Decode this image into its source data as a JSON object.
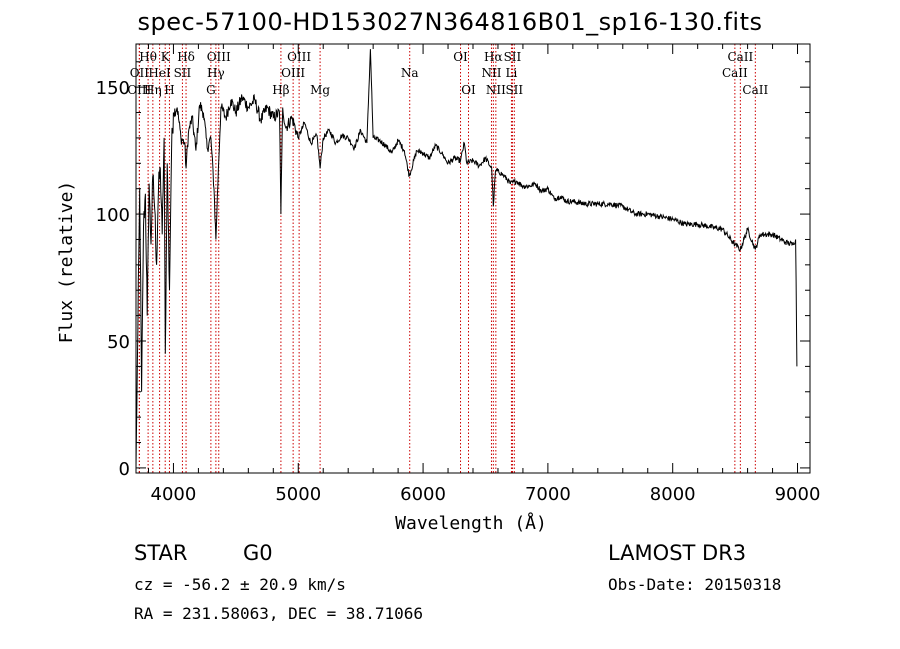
{
  "chart_data": {
    "type": "line",
    "title": "spec-57100-HD153027N364816B01_sp16-130.fits",
    "xlabel": "Wavelength (Å)",
    "ylabel": "Flux (relative)",
    "xlim": [
      3700,
      9100
    ],
    "ylim": [
      -2,
      167
    ],
    "xticks": [
      4000,
      5000,
      6000,
      7000,
      8000,
      9000
    ],
    "yticks": [
      0,
      50,
      100,
      150
    ],
    "line_color": "#000000",
    "marker_color": "#cc0000",
    "series": [
      {
        "name": "flux",
        "x": [
          3700,
          3715,
          3730,
          3745,
          3760,
          3775,
          3790,
          3805,
          3820,
          3835,
          3850,
          3865,
          3880,
          3895,
          3910,
          3925,
          3935,
          3950,
          3968,
          3985,
          4000,
          4030,
          4060,
          4090,
          4101,
          4120,
          4150,
          4180,
          4210,
          4240,
          4270,
          4300,
          4325,
          4340,
          4360,
          4380,
          4420,
          4460,
          4500,
          4550,
          4600,
          4650,
          4700,
          4750,
          4800,
          4850,
          4861,
          4875,
          4900,
          4950,
          5000,
          5050,
          5100,
          5150,
          5175,
          5200,
          5250,
          5300,
          5350,
          5400,
          5450,
          5500,
          5550,
          5578,
          5600,
          5650,
          5700,
          5750,
          5800,
          5850,
          5890,
          5950,
          6000,
          6050,
          6100,
          6150,
          6200,
          6250,
          6300,
          6330,
          6350,
          6400,
          6450,
          6500,
          6550,
          6563,
          6580,
          6600,
          6650,
          6700,
          6750,
          6800,
          6850,
          6900,
          6950,
          7000,
          7050,
          7100,
          7150,
          7200,
          7300,
          7400,
          7500,
          7600,
          7700,
          7800,
          7900,
          8000,
          8100,
          8200,
          8300,
          8400,
          8498,
          8542,
          8600,
          8662,
          8700,
          8800,
          8900,
          8960,
          8985,
          8995
        ],
        "y": [
          0,
          55,
          110,
          30,
          95,
          108,
          60,
          112,
          88,
          115,
          102,
          80,
          110,
          118,
          92,
          130,
          45,
          120,
          70,
          126,
          140,
          142,
          130,
          128,
          118,
          132,
          138,
          125,
          143,
          140,
          126,
          130,
          110,
          90,
          118,
          142,
          138,
          145,
          140,
          146,
          142,
          145,
          137,
          142,
          138,
          140,
          100,
          142,
          134,
          138,
          130,
          136,
          128,
          131,
          118,
          130,
          133,
          128,
          131,
          130,
          126,
          133,
          128,
          165,
          130,
          129,
          127,
          124,
          129,
          125,
          115,
          125,
          124,
          122,
          127,
          124,
          120,
          122,
          121,
          128,
          120,
          121,
          119,
          122,
          118,
          103,
          117,
          117,
          115,
          112,
          113,
          111,
          111,
          112,
          109,
          110,
          106,
          107,
          105,
          105,
          104,
          104,
          104,
          103,
          100,
          100,
          99,
          98,
          96,
          96,
          95,
          94,
          88,
          86,
          94,
          86,
          92,
          92,
          89,
          88,
          90,
          40
        ]
      }
    ],
    "line_markers": [
      {
        "wave": 3797,
        "label": "Hθ",
        "row": 1
      },
      {
        "wave": 3727,
        "label": "OII",
        "row": 2
      },
      {
        "wave": 3727,
        "label": "OIII",
        "row": 3
      },
      {
        "wave": 3835,
        "label": "Hη",
        "row": 3
      },
      {
        "wave": 3889,
        "label": "HeI",
        "row": 2
      },
      {
        "wave": 3934,
        "label": "K",
        "row": 1
      },
      {
        "wave": 3968,
        "label": "H",
        "row": 3
      },
      {
        "wave": 4072,
        "label": "SII",
        "row": 2
      },
      {
        "wave": 4101,
        "label": "Hδ",
        "row": 1
      },
      {
        "wave": 4300,
        "label": "G",
        "row": 3
      },
      {
        "wave": 4340,
        "label": "Hγ",
        "row": 2
      },
      {
        "wave": 4363,
        "label": "OIII",
        "row": 1
      },
      {
        "wave": 4861,
        "label": "Hβ",
        "row": 3
      },
      {
        "wave": 4959,
        "label": "OIII",
        "row": 2
      },
      {
        "wave": 5007,
        "label": "OIII",
        "row": 1
      },
      {
        "wave": 5175,
        "label": "Mg",
        "row": 3
      },
      {
        "wave": 5893,
        "label": "Na",
        "row": 2
      },
      {
        "wave": 6300,
        "label": "OI",
        "row": 1
      },
      {
        "wave": 6364,
        "label": "OI",
        "row": 3
      },
      {
        "wave": 6548,
        "label": "NII",
        "row": 2
      },
      {
        "wave": 6563,
        "label": "Hα",
        "row": 1
      },
      {
        "wave": 6583,
        "label": "NII",
        "row": 3
      },
      {
        "wave": 6708,
        "label": "Li",
        "row": 2
      },
      {
        "wave": 6716,
        "label": "SII",
        "row": 1
      },
      {
        "wave": 6731,
        "label": "SII",
        "row": 3
      },
      {
        "wave": 8498,
        "label": "CaII",
        "row": 2
      },
      {
        "wave": 8542,
        "label": "CaII",
        "row": 1
      },
      {
        "wave": 8662,
        "label": "CaII",
        "row": 3
      }
    ]
  },
  "info": {
    "object_class": "STAR",
    "subclass": "G0",
    "survey": "LAMOST DR3",
    "redshift": "cz = -56.2 ± 20.9 km/s",
    "obs_date": "Obs-Date: 20150318",
    "coords": "RA = 231.58063, DEC =  38.71066"
  }
}
